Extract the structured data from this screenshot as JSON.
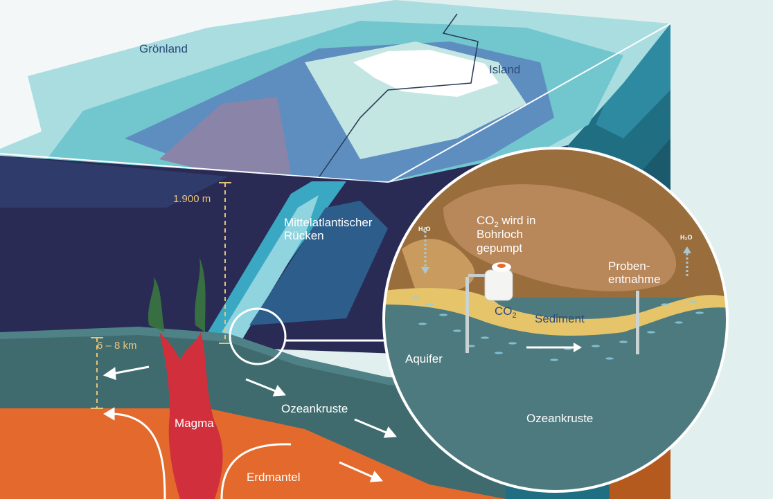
{
  "labels": {
    "groenland": "Grönland",
    "island": "Island",
    "depth_water": "1.900 m",
    "ridge_line1": "Mittelatlantischer",
    "ridge_line2": "Rücken",
    "crust_thickness": "6 – 8 km",
    "magma": "Magma",
    "ozeankruste_main": "Ozeankruste",
    "erdmantel": "Erdmantel"
  },
  "inset": {
    "co2_line1_main": "CO",
    "co2_line1_sub": "2",
    "co2_line1_rest": " wird in",
    "co2_line2": "Bohrloch",
    "co2_line3": "gepumpt",
    "h2o_left": "H₂O",
    "h2o_right": "H₂O",
    "proben_line1": "Proben-",
    "proben_line2": "entnahme",
    "co2_tank_main": "CO",
    "co2_tank_sub": "2",
    "sediment": "Sediment",
    "aquifer": "Aquifer",
    "ozeankruste": "Ozeankruste"
  },
  "colors": {
    "background": "#e1efee",
    "deep_ocean": "#2a2b55",
    "crust": "#3f6b6f",
    "mantle": "#e36a2c",
    "magma": "#d22f3c",
    "sediment": "#e6c46a",
    "inset_top": "#9a6e3c"
  }
}
